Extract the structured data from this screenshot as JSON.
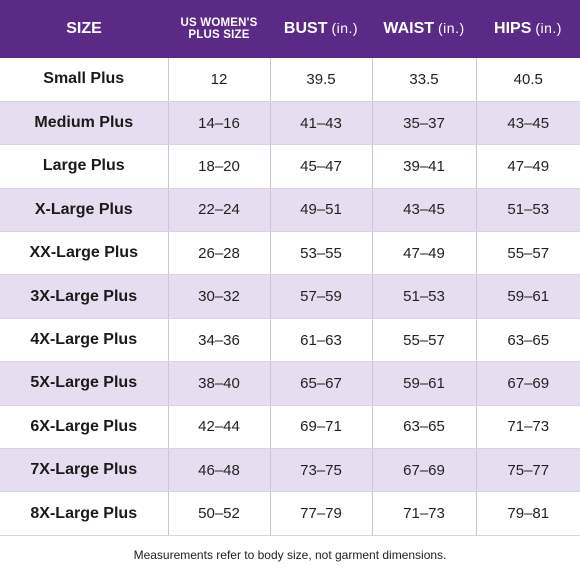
{
  "table": {
    "headers": {
      "size": "SIZE",
      "us_line1": "US WOMEN'S",
      "us_line2": "PLUS SIZE",
      "bust": "BUST",
      "bust_unit": "(in.)",
      "waist": "WAIST",
      "waist_unit": "(in.)",
      "hips": "HIPS",
      "hips_unit": "(in.)"
    },
    "rows": [
      {
        "size": "Small Plus",
        "us": "12",
        "bust": "39.5",
        "waist": "33.5",
        "hips": "40.5"
      },
      {
        "size": "Medium Plus",
        "us": "14–16",
        "bust": "41–43",
        "waist": "35–37",
        "hips": "43–45"
      },
      {
        "size": "Large Plus",
        "us": "18–20",
        "bust": "45–47",
        "waist": "39–41",
        "hips": "47–49"
      },
      {
        "size": "X-Large Plus",
        "us": "22–24",
        "bust": "49–51",
        "waist": "43–45",
        "hips": "51–53"
      },
      {
        "size": "XX-Large Plus",
        "us": "26–28",
        "bust": "53–55",
        "waist": "47–49",
        "hips": "55–57"
      },
      {
        "size": "3X-Large Plus",
        "us": "30–32",
        "bust": "57–59",
        "waist": "51–53",
        "hips": "59–61"
      },
      {
        "size": "4X-Large Plus",
        "us": "34–36",
        "bust": "61–63",
        "waist": "55–57",
        "hips": "63–65"
      },
      {
        "size": "5X-Large Plus",
        "us": "38–40",
        "bust": "65–67",
        "waist": "59–61",
        "hips": "67–69"
      },
      {
        "size": "6X-Large Plus",
        "us": "42–44",
        "bust": "69–71",
        "waist": "63–65",
        "hips": "71–73"
      },
      {
        "size": "7X-Large Plus",
        "us": "46–48",
        "bust": "73–75",
        "waist": "67–69",
        "hips": "75–77"
      },
      {
        "size": "8X-Large Plus",
        "us": "50–52",
        "bust": "77–79",
        "waist": "71–73",
        "hips": "79–81"
      }
    ]
  },
  "footnote": "Measurements refer to body size, not garment dimensions.",
  "colors": {
    "header_bg": "#5b2a86",
    "row_alt_bg": "#e6def0",
    "row_bg": "#ffffff"
  }
}
